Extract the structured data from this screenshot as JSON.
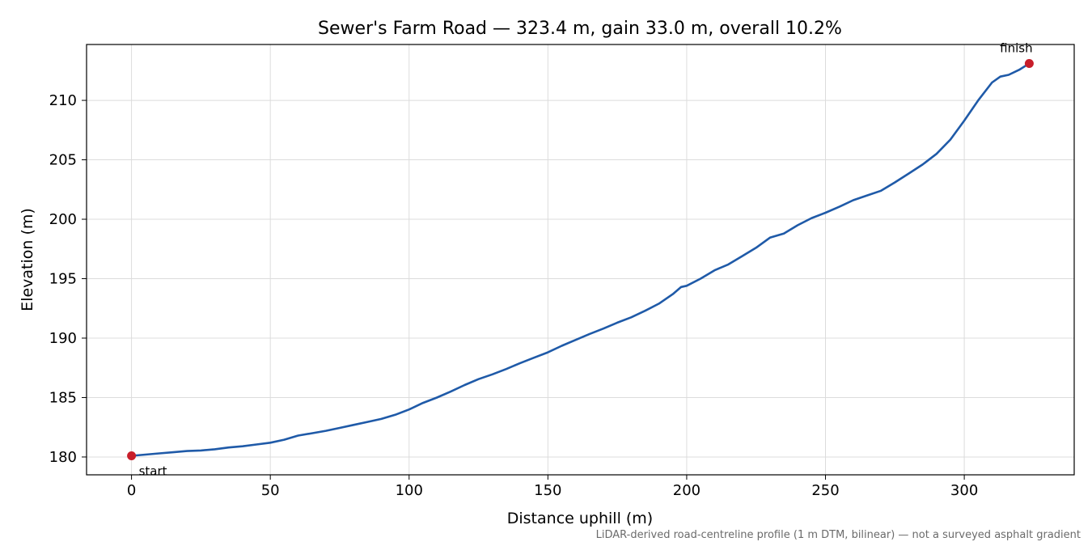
{
  "chart_data": {
    "type": "line",
    "title": "Sewer's Farm Road — 323.4 m, gain 33.0 m, overall 10.2%",
    "xlabel": "Distance uphill (m)",
    "ylabel": "Elevation (m)",
    "xlim": [
      -16.2,
      339.6
    ],
    "ylim": [
      178.5,
      214.7
    ],
    "x_ticks": [
      0,
      50,
      100,
      150,
      200,
      250,
      300
    ],
    "y_ticks": [
      180,
      185,
      190,
      195,
      200,
      205,
      210
    ],
    "grid": true,
    "line_color": "#1f5aa8",
    "marker_color": "#c81e2a",
    "series": [
      {
        "x": [
          0,
          5,
          10,
          15,
          20,
          25,
          30,
          35,
          40,
          45,
          50,
          55,
          60,
          65,
          70,
          75,
          80,
          85,
          90,
          95,
          100,
          105,
          110,
          115,
          120,
          125,
          130,
          135,
          140,
          145,
          150,
          155,
          160,
          165,
          170,
          175,
          180,
          185,
          190,
          195,
          198,
          200,
          205,
          210,
          215,
          220,
          225,
          230,
          235,
          240,
          245,
          250,
          255,
          260,
          265,
          270,
          275,
          280,
          285,
          290,
          295,
          300,
          305,
          310,
          313,
          316,
          320,
          323.4
        ],
        "y": [
          180.1,
          180.2,
          180.3,
          180.4,
          180.5,
          180.55,
          180.65,
          180.8,
          180.9,
          181.05,
          181.2,
          181.45,
          181.8,
          182.0,
          182.2,
          182.45,
          182.7,
          182.95,
          183.2,
          183.55,
          184.0,
          184.55,
          185.0,
          185.5,
          186.05,
          186.55,
          186.95,
          187.4,
          187.9,
          188.35,
          188.8,
          189.35,
          189.85,
          190.35,
          190.8,
          191.3,
          191.75,
          192.3,
          192.9,
          193.7,
          194.3,
          194.4,
          195.0,
          195.7,
          196.2,
          196.9,
          197.6,
          198.45,
          198.8,
          199.5,
          200.1,
          200.55,
          201.05,
          201.6,
          202.0,
          202.4,
          203.1,
          203.85,
          204.6,
          205.5,
          206.7,
          208.3,
          210.0,
          211.5,
          212.0,
          212.15,
          212.6,
          213.1
        ]
      }
    ],
    "annotations": [
      {
        "text": "start",
        "x": 0,
        "y": 180.1
      },
      {
        "text": "finish",
        "x": 323.4,
        "y": 213.1
      }
    ],
    "footnote": "LiDAR-derived road-centreline profile (1 m DTM, bilinear) — not a surveyed asphalt gradient"
  }
}
